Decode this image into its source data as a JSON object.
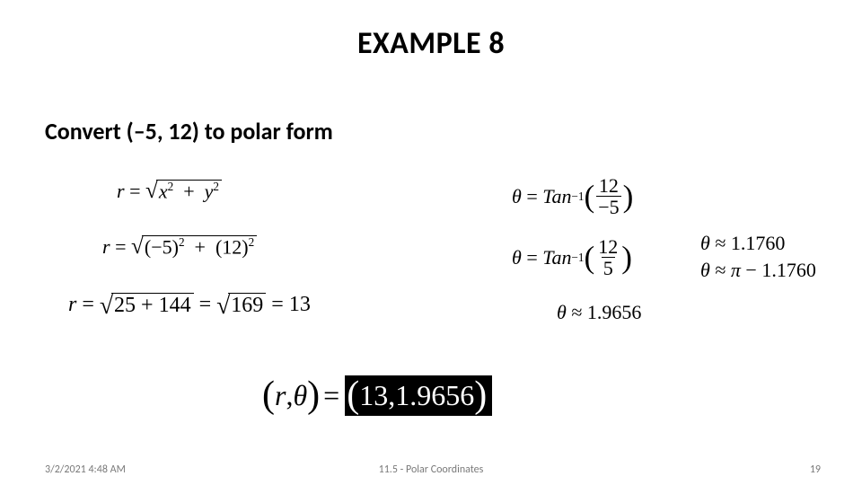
{
  "title_word": "EXAMPLE",
  "title_num": "8",
  "prompt": "Convert (–5, 12) to polar form",
  "r": {
    "line1": {
      "lhs": "r",
      "under": "x² + y²",
      "under_x": "x",
      "under_y": "y",
      "exp": "2"
    },
    "line2": {
      "a": "−5",
      "b": "12",
      "exp": "2"
    },
    "line3": {
      "sum": "25 + 144",
      "sqrt2": "169",
      "val": "13",
      "sum_a": "25",
      "sum_b": "144"
    }
  },
  "theta": {
    "sym": "θ",
    "fn": "Tan",
    "inv": "−1",
    "line1": {
      "num": "12",
      "den": "−5"
    },
    "line2": {
      "num": "12",
      "den": "5"
    },
    "approx": "≈",
    "val1": "1.1760",
    "pi": "π",
    "minus": "−",
    "val2": "1.1760",
    "final": "1.9656"
  },
  "answer": {
    "r_label": "r",
    "theta_label": "θ",
    "r_val": "13",
    "theta_val": "1.9656",
    "comma": ","
  },
  "footer": {
    "timestamp": "3/2/2021 4:48 AM",
    "section": "11.5 - Polar Coordinates",
    "page": "19"
  },
  "colors": {
    "bg": "#ffffff",
    "text": "#000000",
    "footer": "#7a7a7a",
    "box_bg": "#000000",
    "box_fg": "#ffffff"
  }
}
